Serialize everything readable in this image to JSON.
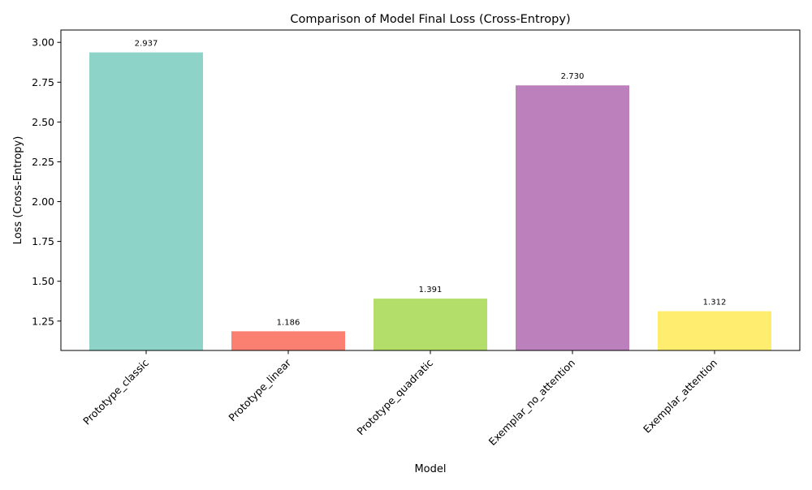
{
  "chart_data": {
    "type": "bar",
    "title": "Comparison of Model Final Loss (Cross-Entropy)",
    "xlabel": "Model",
    "ylabel": "Loss (Cross-Entropy)",
    "categories": [
      "Prototype_classic",
      "Prototype_linear",
      "Prototype_quadratic",
      "Exemplar_no_attention",
      "Exemplar_attention"
    ],
    "values": [
      2.937,
      1.186,
      1.391,
      2.73,
      1.312
    ],
    "data_labels": [
      "2.937",
      "1.186",
      "1.391",
      "2.730",
      "1.312"
    ],
    "colors": [
      "#8dd3c7",
      "#fb8072",
      "#b3de69",
      "#bc80bd",
      "#ffed6f"
    ],
    "ylim": [
      1.0655,
      3.0775
    ],
    "yticks": [
      1.25,
      1.5,
      1.75,
      2.0,
      2.25,
      2.5,
      2.75,
      3.0
    ],
    "ytick_labels": [
      "1.25",
      "1.50",
      "1.75",
      "2.00",
      "2.25",
      "2.50",
      "2.75",
      "3.00"
    ],
    "grid": false,
    "legend": "none",
    "xtick_rotation": 45
  }
}
